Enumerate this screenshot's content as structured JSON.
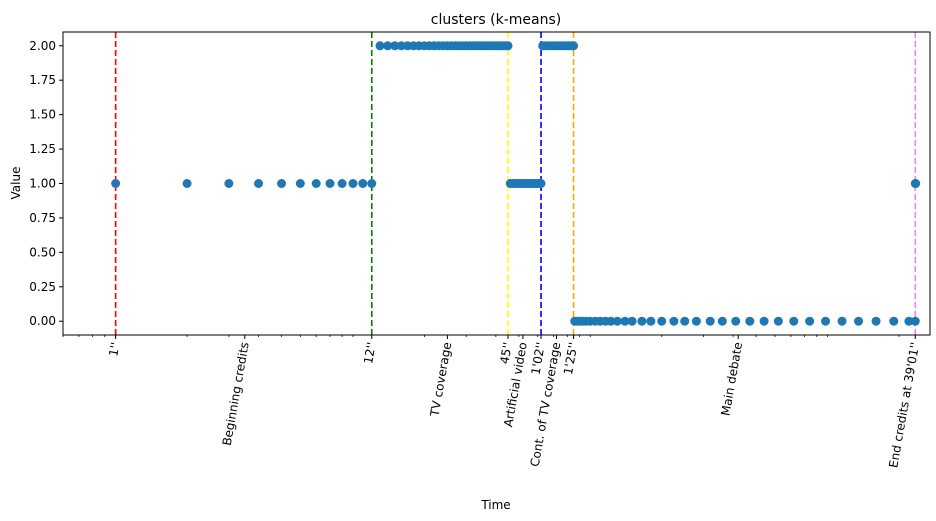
{
  "chart_data": {
    "type": "scatter",
    "title": "clusters (k-means)",
    "xlabel": "Time",
    "ylabel": "Value",
    "xscale": "log",
    "x_unit": "seconds",
    "xlim": [
      0.6,
      2700
    ],
    "ylim": [
      -0.1,
      2.1
    ],
    "grid": false,
    "marker_color": "#1f77b4",
    "y_ticks": [
      {
        "value": 0.0,
        "label": "0.00"
      },
      {
        "value": 0.25,
        "label": "0.25"
      },
      {
        "value": 0.5,
        "label": "0.50"
      },
      {
        "value": 0.75,
        "label": "0.75"
      },
      {
        "value": 1.0,
        "label": "1.00"
      },
      {
        "value": 1.25,
        "label": "1.25"
      },
      {
        "value": 1.5,
        "label": "1.50"
      },
      {
        "value": 1.75,
        "label": "1.75"
      },
      {
        "value": 2.0,
        "label": "2.00"
      }
    ],
    "x_tick_labels": [
      {
        "x": 1,
        "label": "1''"
      },
      {
        "x": 3.5,
        "label": "Beginning credits"
      },
      {
        "x": 12,
        "label": "12''"
      },
      {
        "x": 25,
        "label": "TV coverage"
      },
      {
        "x": 45,
        "label": "45''"
      },
      {
        "x": 52,
        "label": "Artificial video"
      },
      {
        "x": 62,
        "label": "1'02''"
      },
      {
        "x": 72,
        "label": "Cont. of TV coverage"
      },
      {
        "x": 85,
        "label": "1'25''"
      },
      {
        "x": 420,
        "label": "Main debate"
      },
      {
        "x": 2341,
        "label": "End credits at 39'01''"
      }
    ],
    "vlines": [
      {
        "x": 1,
        "color": "#ff0000"
      },
      {
        "x": 12,
        "color": "#008000"
      },
      {
        "x": 45,
        "color": "#ffff00"
      },
      {
        "x": 62,
        "color": "#0000ff"
      },
      {
        "x": 85,
        "color": "#ffa500"
      },
      {
        "x": 2341,
        "color": "#ee82ee"
      }
    ],
    "series": [
      {
        "x": [
          1,
          2,
          3,
          4,
          5,
          6,
          7,
          8,
          9,
          10,
          11,
          12
        ],
        "values": [
          1,
          1,
          1,
          1,
          1,
          1,
          1,
          1,
          1,
          1,
          1,
          1
        ]
      },
      {
        "x": [
          13,
          14,
          15,
          16,
          17,
          18,
          19,
          20,
          21,
          22,
          23,
          24,
          25,
          26,
          27,
          28,
          29,
          30,
          31,
          32,
          33,
          34,
          35,
          36,
          37,
          38,
          39,
          40,
          41,
          42,
          43,
          44,
          45
        ],
        "values": [
          2,
          2,
          2,
          2,
          2,
          2,
          2,
          2,
          2,
          2,
          2,
          2,
          2,
          2,
          2,
          2,
          2,
          2,
          2,
          2,
          2,
          2,
          2,
          2,
          2,
          2,
          2,
          2,
          2,
          2,
          2,
          2,
          2
        ]
      },
      {
        "x": [
          46,
          47,
          48,
          49,
          50,
          51,
          52,
          53,
          54,
          55,
          56,
          57,
          58,
          59,
          60,
          61,
          62
        ],
        "values": [
          1,
          1,
          1,
          1,
          1,
          1,
          1,
          1,
          1,
          1,
          1,
          1,
          1,
          1,
          1,
          1,
          1
        ]
      },
      {
        "x": [
          63,
          65,
          67,
          69,
          71,
          73,
          75,
          77,
          79,
          81,
          83,
          85
        ],
        "values": [
          2,
          2,
          2,
          2,
          2,
          2,
          2,
          2,
          2,
          2,
          2,
          2
        ]
      },
      {
        "x": [
          86,
          88,
          90,
          93,
          96,
          100,
          105,
          110,
          116,
          122,
          130,
          140,
          150,
          165,
          180,
          200,
          225,
          250,
          280,
          320,
          360,
          410,
          470,
          540,
          620,
          720,
          840,
          980,
          1150,
          1350,
          1600,
          1900,
          2200,
          2340
        ],
        "values": [
          0,
          0,
          0,
          0,
          0,
          0,
          0,
          0,
          0,
          0,
          0,
          0,
          0,
          0,
          0,
          0,
          0,
          0,
          0,
          0,
          0,
          0,
          0,
          0,
          0,
          0,
          0,
          0,
          0,
          0,
          0,
          0,
          0,
          0
        ]
      },
      {
        "x": [
          2341,
          2345,
          2350
        ],
        "values": [
          1,
          1,
          1
        ]
      }
    ]
  }
}
